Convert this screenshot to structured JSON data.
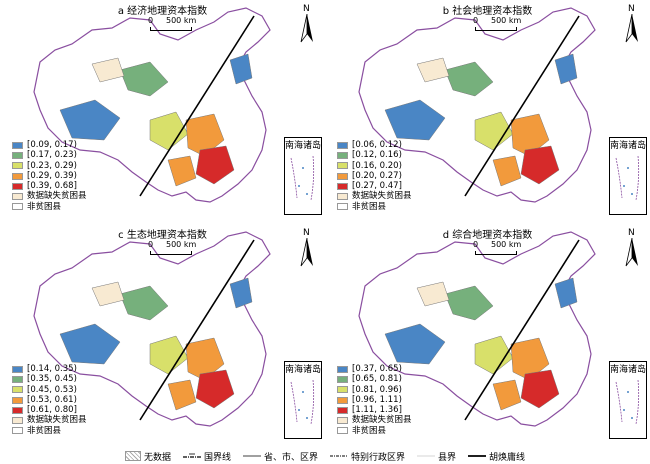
{
  "panels": [
    {
      "title": "a 经济地理资本指数",
      "legend": [
        {
          "label": "[0.09, 0.17)",
          "color": "#4a86c5"
        },
        {
          "label": "[0.17, 0.23)",
          "color": "#76b07c"
        },
        {
          "label": "[0.23, 0.29)",
          "color": "#d8e06a"
        },
        {
          "label": "[0.29, 0.39)",
          "color": "#f29a3c"
        },
        {
          "label": "[0.39, 0.68]",
          "color": "#d62a2a"
        },
        {
          "label": "数据缺失贫困县",
          "color": "#f8ead2"
        },
        {
          "label": "非贫困县",
          "color": "#ffffff"
        }
      ]
    },
    {
      "title": "b 社会地理资本指数",
      "legend": [
        {
          "label": "[0.06, 0.12)",
          "color": "#4a86c5"
        },
        {
          "label": "[0.12, 0.16)",
          "color": "#76b07c"
        },
        {
          "label": "[0.16, 0.20)",
          "color": "#d8e06a"
        },
        {
          "label": "[0.20, 0.27)",
          "color": "#f29a3c"
        },
        {
          "label": "[0.27, 0.47]",
          "color": "#d62a2a"
        },
        {
          "label": "数据缺失贫困县",
          "color": "#f8ead2"
        },
        {
          "label": "非贫困县",
          "color": "#ffffff"
        }
      ]
    },
    {
      "title": "c 生态地理资本指数",
      "legend": [
        {
          "label": "[0.14, 0.35)",
          "color": "#4a86c5"
        },
        {
          "label": "[0.35, 0.45)",
          "color": "#76b07c"
        },
        {
          "label": "[0.45, 0.53)",
          "color": "#d8e06a"
        },
        {
          "label": "[0.53, 0.61)",
          "color": "#f29a3c"
        },
        {
          "label": "[0.61, 0.80]",
          "color": "#d62a2a"
        },
        {
          "label": "数据缺失贫困县",
          "color": "#f8ead2"
        },
        {
          "label": "非贫困县",
          "color": "#ffffff"
        }
      ]
    },
    {
      "title": "d 综合地理资本指数",
      "legend": [
        {
          "label": "[0.37, 0.65)",
          "color": "#4a86c5"
        },
        {
          "label": "[0.65, 0.81)",
          "color": "#76b07c"
        },
        {
          "label": "[0.81, 0.96)",
          "color": "#d8e06a"
        },
        {
          "label": "[0.96, 1.11)",
          "color": "#f29a3c"
        },
        {
          "label": "[1.11, 1.36]",
          "color": "#d62a2a"
        },
        {
          "label": "数据缺失贫困县",
          "color": "#f8ead2"
        },
        {
          "label": "非贫困县",
          "color": "#ffffff"
        }
      ]
    }
  ],
  "scale": {
    "zero": "0",
    "distance": "500 km"
  },
  "north": "N",
  "inset_title": "南海诸岛",
  "bottom_legend": {
    "no_data": "无数据",
    "national_border": "国界线",
    "province_border": "省、市、区界",
    "sar_border": "特别行政区界",
    "county_border": "县界",
    "hu_line": "胡焕庸线"
  },
  "colors": {
    "outline": "#8a4fa0",
    "hu_line": "#000000"
  }
}
